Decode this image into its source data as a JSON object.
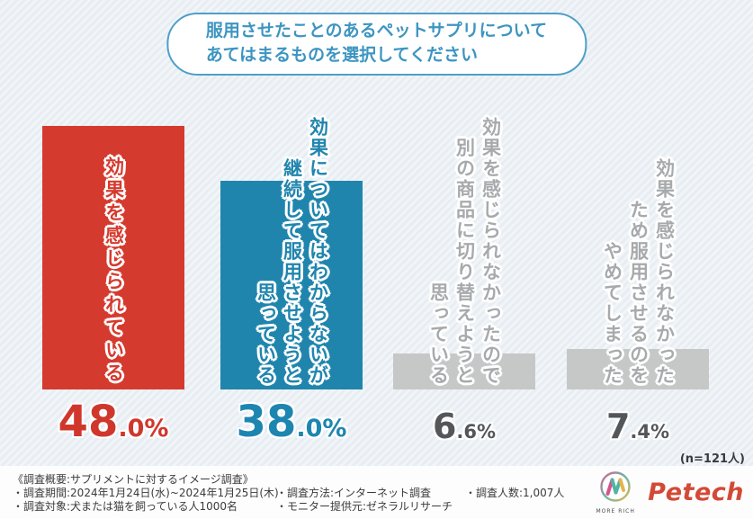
{
  "title": {
    "line1": "服用させたことのあるペットサプリについて",
    "line2": "あてはまるものを選択してください"
  },
  "chart_data": {
    "type": "bar",
    "title": "服用させたことのあるペットサプリについて あてはまるものを選択してください",
    "categories": [
      "効果を感じられている",
      "効果についてはわからないが継続して服用させようと思っている",
      "効果を感じられなかったので別の商品に切り替えようと思っている",
      "効果を感じられなかったため服用させるのをやめてしまった"
    ],
    "values": [
      48.0,
      38.0,
      6.6,
      7.4
    ],
    "unit": "%",
    "ylim": [
      0,
      50
    ],
    "grid": false,
    "legend": false,
    "annotation": "(n=121人)",
    "bar_colors": [
      "#d53a2e",
      "#2085ad",
      "#c6c8c8",
      "#c6c8c8"
    ]
  },
  "bars": [
    {
      "label_lines": "効果を感じられている",
      "value": 48.0,
      "pct_main": "48",
      "pct_sub": ".0%",
      "color": "#d53a2e",
      "label_color": "#d53a2e",
      "pct_color": "#d0372c"
    },
    {
      "label_lines": "効果についてはわからないが\n継続して服用させようと\n思っている",
      "value": 38.0,
      "pct_main": "38",
      "pct_sub": ".0%",
      "color": "#2085ad",
      "label_color": "#2085ad",
      "pct_color": "#1d86b0"
    },
    {
      "label_lines": "効果を感じられなかったので\n別の商品に切り替えようと\n思っている",
      "value": 6.6,
      "pct_main": "6",
      "pct_sub": ".6%",
      "color": "#c6c8c8",
      "label_color": "#a7aaac",
      "pct_color": "#54575a"
    },
    {
      "label_lines": "効果を感じられなかった\nため服用させるのを\nやめてしまった",
      "value": 7.4,
      "pct_main": "7",
      "pct_sub": ".4%",
      "color": "#c6c8c8",
      "label_color": "#a7aaac",
      "pct_color": "#54575a"
    }
  ],
  "annotation": {
    "n_label": "(n=121人)"
  },
  "footer": {
    "col1": [
      "《調査概要:サプリメントに対するイメージ調査》",
      "・調査期間:2024年1月24日(水)~2024年1月25日(木)",
      "・調査対象:犬または猫を飼っている人1000名"
    ],
    "col2": [
      "・調査方法:インターネット調査",
      "・モニター提供元:ゼネラルリサーチ"
    ],
    "col3": [
      "・調査人数:1,007人"
    ],
    "logo": {
      "brand": "Petech",
      "sub": "MORE RICH"
    }
  },
  "colors": {
    "title_text": "#3d95c1",
    "title_border": "#4f9fc8",
    "background": "#e9eef3",
    "footer_bg": "#fdfdfe",
    "brand_red": "#d24a36"
  }
}
